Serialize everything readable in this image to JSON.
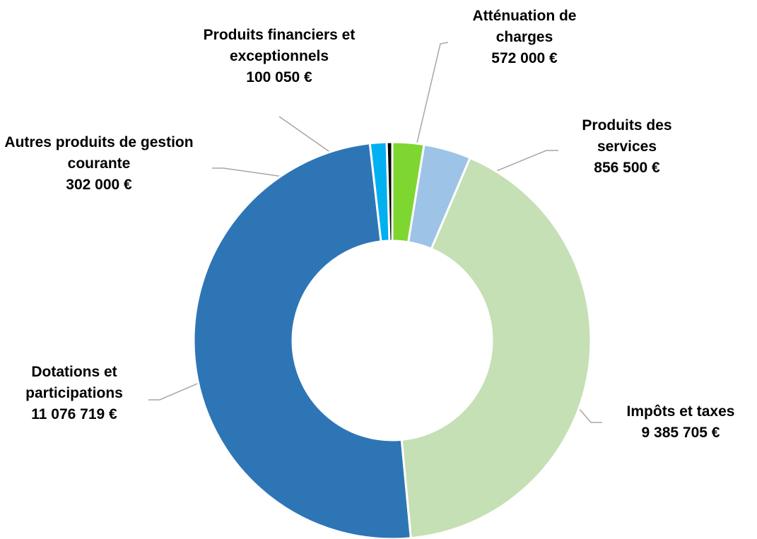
{
  "chart_data": {
    "type": "donut",
    "categories": [
      "Atténuation de charges",
      "Produits des services",
      "Impôts et taxes",
      "Dotations et participations",
      "Autres produits de gestion courante",
      "Produits financiers et exceptionnels"
    ],
    "values": [
      572000,
      856500,
      9385705,
      11076719,
      302000,
      100050
    ],
    "value_labels": [
      "572 000 €",
      "856 500 €",
      "9 385 705 €",
      "11 076 719 €",
      "302 000 €",
      "100 050 €"
    ],
    "colors": [
      "#7ed631",
      "#9dc3e6",
      "#c5e0b4",
      "#2e75b6",
      "#00b0f0",
      "#000000"
    ]
  }
}
